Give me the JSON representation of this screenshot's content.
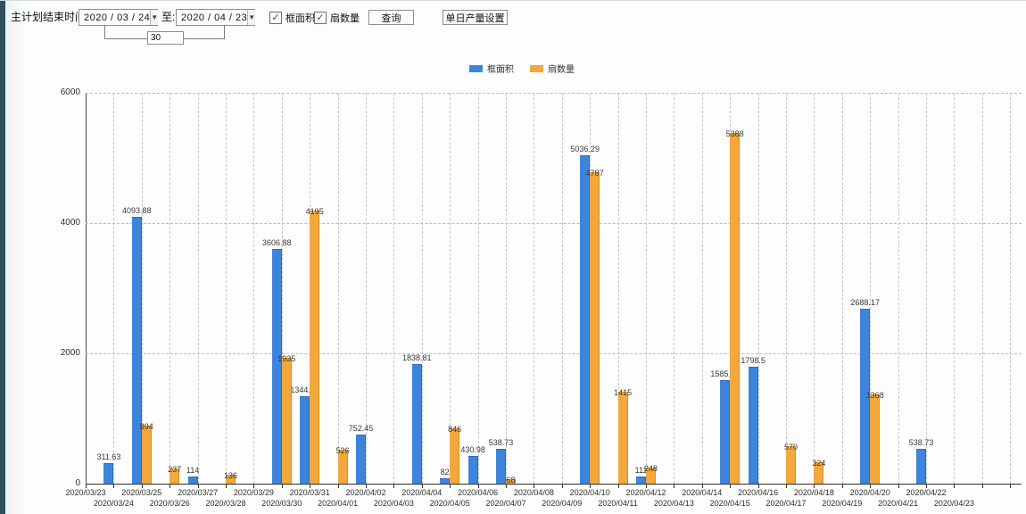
{
  "toolbar": {
    "plan_end_label": "主计划结束时间:",
    "date_from": "2020 / 03 / 24",
    "to_label": "至:",
    "date_to": "2020 / 04 / 23",
    "interval_days": "30",
    "checkbox_frame_area": {
      "label": "框面积",
      "checked": true
    },
    "checkbox_fan_count": {
      "label": "扇数量",
      "checked": true
    },
    "query_button": "查询",
    "daily_output_button": "单日产量设置"
  },
  "legend": {
    "items": [
      {
        "label": "框面积",
        "color": "#3d85dc"
      },
      {
        "label": "扇数量",
        "color": "#f2a83c"
      }
    ]
  },
  "colors": {
    "blue_series": "#3d85dc",
    "blue_border": "#2f6cbc",
    "orange_series": "#f2a83c",
    "orange_border": "#d79027",
    "side_strip": "#31505e"
  },
  "chart_data": {
    "type": "bar",
    "title": "",
    "xlabel": "",
    "ylabel": "",
    "ylim": [
      0,
      6000
    ],
    "yticks": [
      0,
      2000,
      4000,
      6000
    ],
    "grid": true,
    "legend_position": "top",
    "categories": [
      "2020/03/23",
      "2020/03/24",
      "2020/03/25",
      "2020/03/26",
      "2020/03/27",
      "2020/03/28",
      "2020/03/29",
      "2020/03/30",
      "2020/03/31",
      "2020/04/01",
      "2020/04/02",
      "2020/04/03",
      "2020/04/04",
      "2020/04/05",
      "2020/04/06",
      "2020/04/07",
      "2020/04/08",
      "2020/04/09",
      "2020/04/10",
      "2020/04/11",
      "2020/04/12",
      "2020/04/13",
      "2020/04/14",
      "2020/04/15",
      "2020/04/16",
      "2020/04/17",
      "2020/04/18",
      "2020/04/19",
      "2020/04/20",
      "2020/04/21",
      "2020/04/22",
      "2020/04/23"
    ],
    "series": [
      {
        "name": "框面积",
        "color": "#3d85dc",
        "values": [
          null,
          311.63,
          4093.88,
          null,
          114,
          null,
          null,
          3606.88,
          1344.95,
          null,
          752.45,
          null,
          1838.81,
          82,
          430.98,
          538.73,
          null,
          null,
          5036.29,
          null,
          111,
          null,
          null,
          1585.96,
          1798.5,
          null,
          null,
          null,
          2688.17,
          null,
          538.73,
          null
        ]
      },
      {
        "name": "扇数量",
        "color": "#f2a83c",
        "values": [
          null,
          null,
          894,
          237,
          null,
          136,
          null,
          1935,
          4195,
          526,
          null,
          null,
          null,
          846,
          null,
          68,
          null,
          null,
          4787,
          1415,
          248,
          null,
          null,
          5388,
          null,
          570,
          324,
          null,
          1368,
          null,
          null,
          null
        ]
      }
    ]
  }
}
